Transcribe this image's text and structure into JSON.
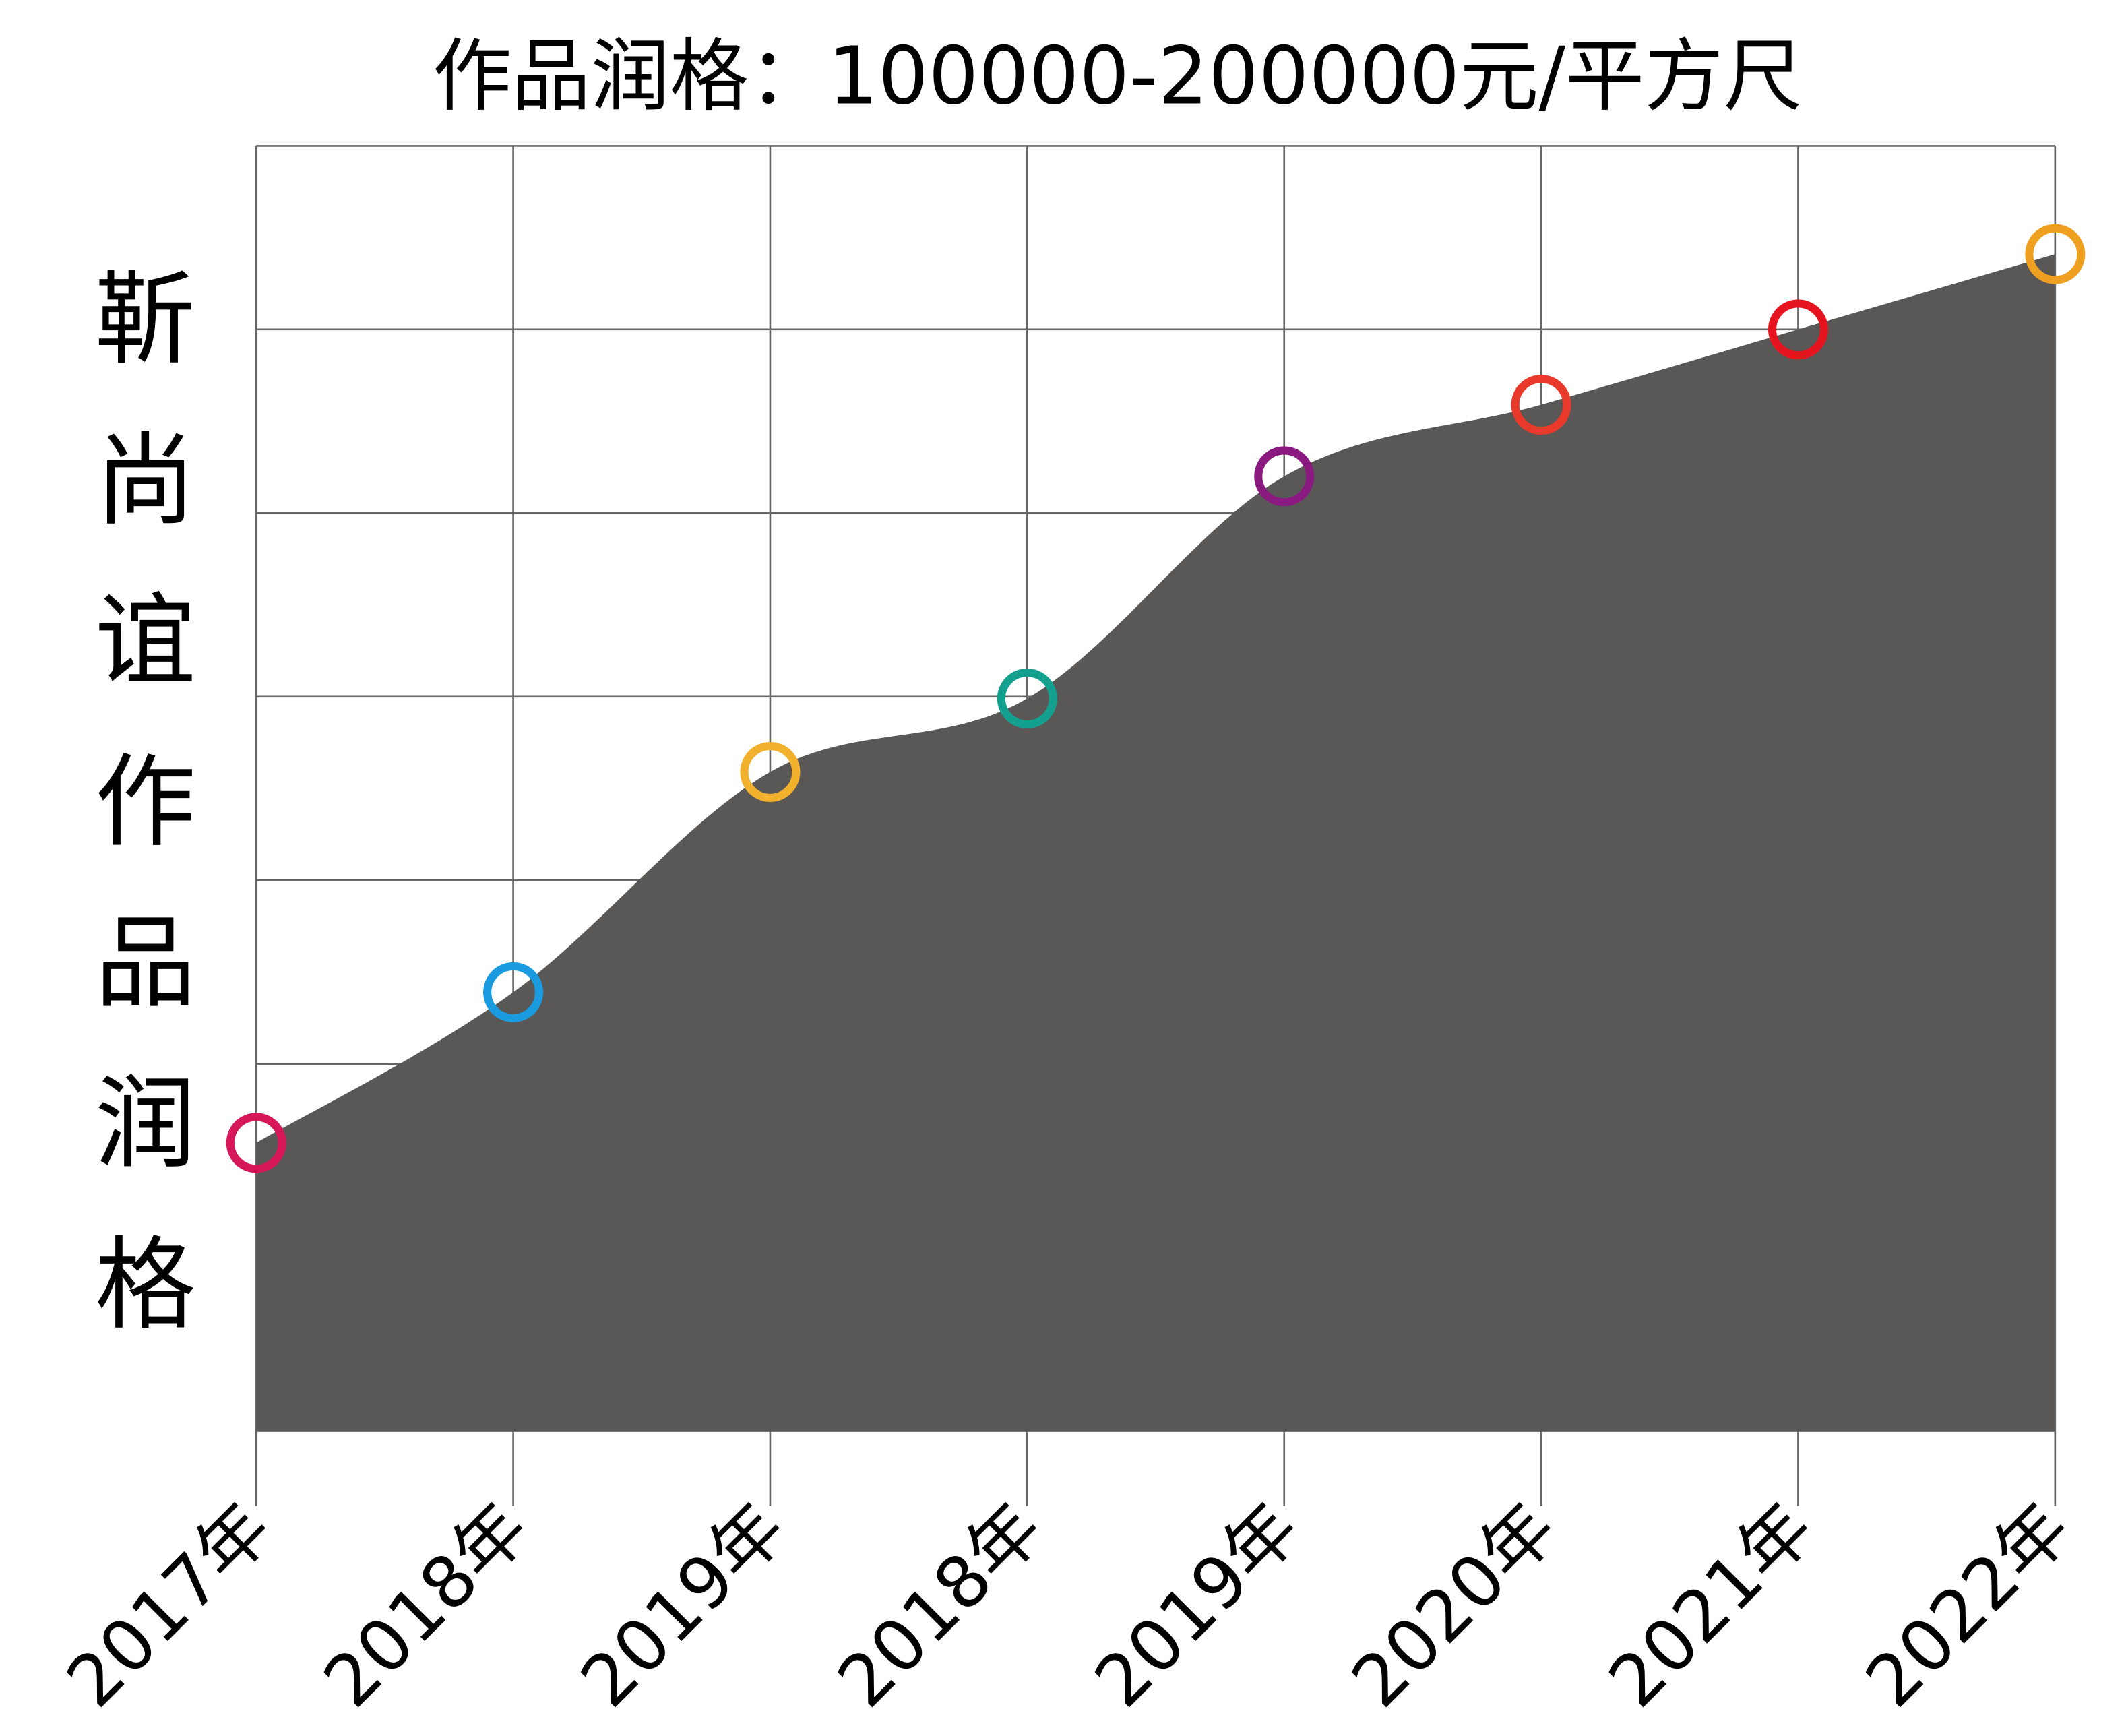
{
  "chart_data": {
    "type": "area",
    "title": "作品润格：100000-200000元/平方尺",
    "y_label": "靳尚谊作品润格",
    "categories": [
      "2017年",
      "2018年",
      "2019年",
      "2018年",
      "2019年",
      "2020年",
      "2021年",
      "2022年"
    ],
    "values": [
      1.57,
      2.39,
      3.59,
      3.99,
      5.2,
      5.59,
      6.0,
      6.41
    ],
    "area_color": "#595856",
    "marker_colors": [
      "#d6185a",
      "#1a9be0",
      "#f2b12d",
      "#14a08f",
      "#8a1a7f",
      "#e8392b",
      "#e5141e",
      "#f0a020"
    ],
    "ylim": [
      0,
      7
    ],
    "yticks": [
      0,
      1,
      2,
      3,
      4,
      5,
      6,
      7
    ],
    "grid": true
  }
}
